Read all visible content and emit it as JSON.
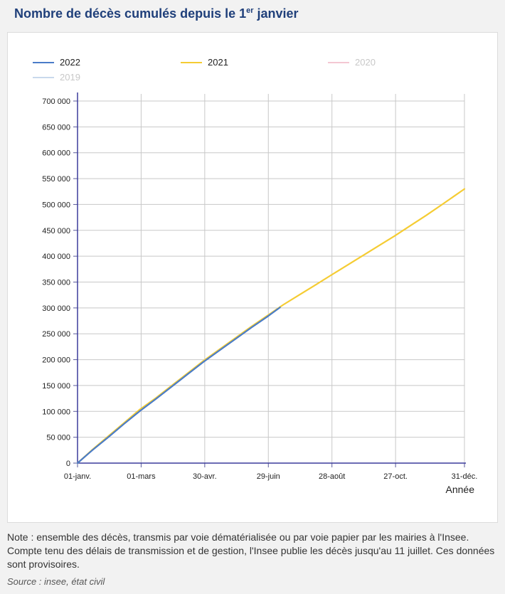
{
  "title": {
    "prefix": "Nombre de décès cumulés depuis le 1",
    "sup": "er",
    "suffix": " janvier"
  },
  "note": "Note : ensemble des décès, transmis par voie dématérialisée ou par voie papier par les mairies à l'Insee. Compte tenu des délais de transmission et de gestion, l'Insee publie les décès jusqu'au 11 juillet. Ces données sont provisoires.",
  "source": "Source : insee, état civil",
  "chart_data": {
    "type": "line",
    "title": "Nombre de décès cumulés depuis le 1er janvier",
    "xlabel": "Année",
    "ylabel": "",
    "x_unit": "day of year",
    "xlim": [
      1,
      366
    ],
    "ylim": [
      0,
      700000
    ],
    "grid": true,
    "legend_position": "top",
    "x_ticks": [
      {
        "x": 1,
        "label": "01-janv."
      },
      {
        "x": 61,
        "label": "01-mars"
      },
      {
        "x": 121,
        "label": "30-avr."
      },
      {
        "x": 181,
        "label": "29-juin"
      },
      {
        "x": 241,
        "label": "28-août"
      },
      {
        "x": 301,
        "label": "27-oct."
      },
      {
        "x": 366,
        "label": "31-déc."
      }
    ],
    "y_ticks": [
      {
        "y": 0,
        "label": "0"
      },
      {
        "y": 50000,
        "label": "50 000"
      },
      {
        "y": 100000,
        "label": "100 000"
      },
      {
        "y": 150000,
        "label": "150 000"
      },
      {
        "y": 200000,
        "label": "200 000"
      },
      {
        "y": 250000,
        "label": "250 000"
      },
      {
        "y": 300000,
        "label": "300 000"
      },
      {
        "y": 350000,
        "label": "350 000"
      },
      {
        "y": 400000,
        "label": "400 000"
      },
      {
        "y": 450000,
        "label": "450 000"
      },
      {
        "y": 500000,
        "label": "500 000"
      },
      {
        "y": 550000,
        "label": "550 000"
      },
      {
        "y": 600000,
        "label": "600 000"
      },
      {
        "y": 650000,
        "label": "650 000"
      },
      {
        "y": 700000,
        "label": "700 000"
      }
    ],
    "series": [
      {
        "name": "2022",
        "color": "#4a7cc8",
        "visible": true,
        "x": [
          1,
          15,
          30,
          45,
          60,
          75,
          90,
          105,
          120,
          135,
          150,
          165,
          180,
          192
        ],
        "y": [
          0,
          25000,
          50000,
          76000,
          101000,
          124000,
          148000,
          172000,
          196000,
          218000,
          240000,
          262000,
          283000,
          301000
        ]
      },
      {
        "name": "2021",
        "color": "#f5cc33",
        "visible": true,
        "x": [
          1,
          15,
          30,
          45,
          60,
          75,
          90,
          105,
          120,
          135,
          150,
          165,
          180,
          195,
          210,
          225,
          240,
          255,
          270,
          285,
          300,
          315,
          330,
          345,
          366
        ],
        "y": [
          0,
          26000,
          52000,
          78000,
          104000,
          126000,
          150000,
          174000,
          198000,
          220000,
          242000,
          264000,
          285000,
          306000,
          325000,
          344000,
          363000,
          382000,
          401000,
          420000,
          439000,
          459000,
          479000,
          500000,
          530000
        ]
      },
      {
        "name": "2020",
        "color": "#f4c7d3",
        "visible": false
      },
      {
        "name": "2019",
        "color": "#c9d9ec",
        "visible": false
      }
    ]
  }
}
